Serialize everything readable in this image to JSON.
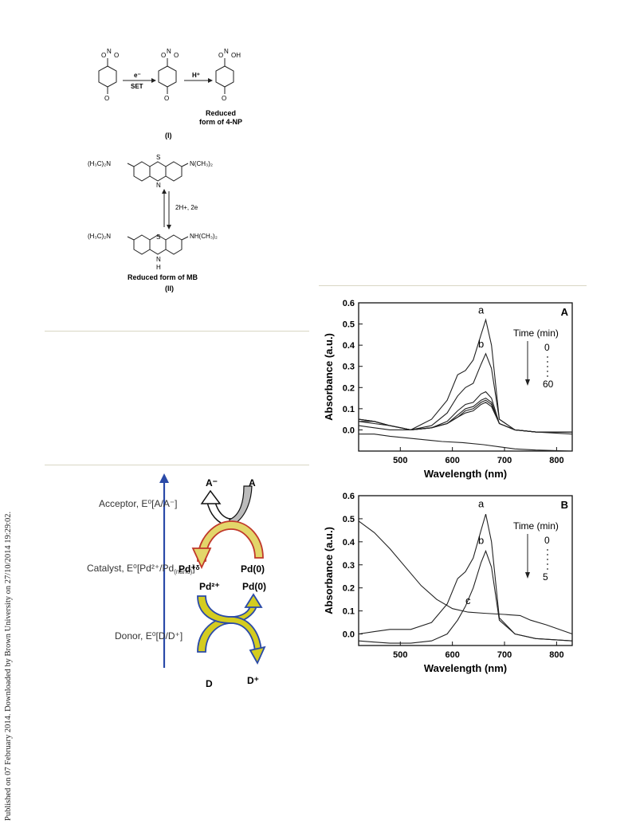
{
  "side_note": "Published on 07 February 2014. Downloaded by Brown University on 27/10/2014 19:29:02.",
  "scheme": {
    "step1_top": "e⁻",
    "step1_bottom": "SET",
    "step2_top": "H⁺",
    "product_label_1": "Reduced",
    "product_label_2": "form of 4-NP",
    "label_I": "(I)",
    "mb_left_group": "(H₃C)₂N",
    "mb_right_group": "N(CH₃)₂",
    "mb_right_group_reduced": "NH(CH₃)₂",
    "equilibrium_label": "2H+, 2e",
    "reduced_mb_label": "Reduced form of MB",
    "label_II": "(II)"
  },
  "energy_diagram": {
    "acceptor": "Acceptor, E⁰[A/A⁻]",
    "catalyst_prefix": "Catalyst, E⁰[Pd²⁺/Pd",
    "catalyst_sub": "(nano)",
    "catalyst_suffix": "]",
    "donor": "Donor, E⁰[D/D⁺]",
    "A_minus": "A⁻",
    "A": "A",
    "pd_plus": "Pd⁺ᵟ",
    "pd0_top": "Pd(0)",
    "pd2_plus": "Pd²⁺",
    "pd0_bottom": "Pd(0)",
    "D": "D",
    "D_plus": "D⁺"
  },
  "chart_data": [
    {
      "type": "line",
      "panel": "A",
      "xlabel": "Wavelength (nm)",
      "ylabel": "Absorbance (a.u.)",
      "xlim": [
        420,
        830
      ],
      "ylim": [
        -0.1,
        0.6
      ],
      "x_ticks": [
        "500",
        "600",
        "700",
        "800"
      ],
      "y_ticks": [
        "0.0",
        "0.1",
        "0.2",
        "0.3",
        "0.4",
        "0.5",
        "0.6"
      ],
      "annotation_time": "Time (min)",
      "annotation_start": "0",
      "annotation_end": "60",
      "curve_labels": [
        "a",
        "b"
      ],
      "series": [
        {
          "name": "a",
          "x": [
            420,
            450,
            480,
            520,
            560,
            590,
            610,
            625,
            640,
            655,
            664,
            675,
            690,
            720,
            760,
            830
          ],
          "y": [
            0.02,
            0.01,
            0.0,
            0.0,
            0.05,
            0.14,
            0.26,
            0.28,
            0.33,
            0.45,
            0.52,
            0.4,
            0.05,
            0.0,
            -0.01,
            -0.02
          ]
        },
        {
          "name": "b",
          "x": [
            420,
            450,
            480,
            520,
            560,
            590,
            610,
            625,
            640,
            655,
            664,
            675,
            690,
            720,
            760,
            830
          ],
          "y": [
            0.04,
            0.03,
            0.02,
            0.0,
            0.02,
            0.08,
            0.16,
            0.2,
            0.22,
            0.31,
            0.36,
            0.29,
            0.05,
            0.0,
            -0.01,
            -0.01
          ]
        },
        {
          "x": [
            420,
            450,
            480,
            520,
            560,
            590,
            610,
            625,
            640,
            655,
            664,
            675,
            690,
            720,
            760,
            830
          ],
          "y": [
            0.05,
            0.04,
            0.02,
            0.0,
            0.01,
            0.04,
            0.09,
            0.12,
            0.13,
            0.17,
            0.18,
            0.15,
            0.03,
            0.0,
            -0.01,
            -0.01
          ]
        },
        {
          "x": [
            420,
            450,
            480,
            520,
            560,
            590,
            610,
            625,
            640,
            655,
            664,
            675,
            690,
            720,
            760,
            830
          ],
          "y": [
            0.05,
            0.04,
            0.02,
            0.0,
            0.01,
            0.03,
            0.07,
            0.1,
            0.11,
            0.14,
            0.15,
            0.13,
            0.03,
            0.0,
            -0.01,
            -0.01
          ]
        },
        {
          "x": [
            420,
            450,
            480,
            520,
            560,
            590,
            610,
            625,
            640,
            655,
            664,
            675,
            690,
            720,
            760,
            830
          ],
          "y": [
            0.05,
            0.04,
            0.02,
            0.0,
            0.01,
            0.03,
            0.06,
            0.09,
            0.1,
            0.13,
            0.14,
            0.12,
            0.03,
            0.0,
            -0.01,
            -0.01
          ]
        },
        {
          "x": [
            420,
            450,
            480,
            520,
            560,
            590,
            610,
            625,
            640,
            655,
            664,
            675,
            690,
            720,
            760,
            830
          ],
          "y": [
            0.04,
            0.04,
            0.02,
            0.0,
            0.01,
            0.03,
            0.06,
            0.08,
            0.09,
            0.12,
            0.13,
            0.11,
            0.03,
            0.0,
            -0.01,
            -0.01
          ]
        },
        {
          "x": [
            420,
            450,
            480,
            520,
            560,
            580,
            620,
            660,
            690,
            720,
            760,
            830
          ],
          "y": [
            -0.02,
            -0.02,
            -0.03,
            -0.04,
            -0.05,
            -0.055,
            -0.06,
            -0.07,
            -0.08,
            -0.09,
            -0.095,
            -0.1
          ]
        }
      ]
    },
    {
      "type": "line",
      "panel": "B",
      "xlabel": "Wavelength (nm)",
      "ylabel": "Absorbance (a.u.)",
      "xlim": [
        420,
        830
      ],
      "ylim": [
        -0.05,
        0.6
      ],
      "x_ticks": [
        "500",
        "600",
        "700",
        "800"
      ],
      "y_ticks": [
        "0.0",
        "0.1",
        "0.2",
        "0.3",
        "0.4",
        "0.5",
        "0.6"
      ],
      "annotation_time": "Time (min)",
      "annotation_start": "0",
      "annotation_end": "5",
      "curve_labels": [
        "a",
        "b",
        "c"
      ],
      "series": [
        {
          "name": "a",
          "x": [
            420,
            450,
            480,
            520,
            560,
            590,
            610,
            625,
            640,
            655,
            664,
            675,
            690,
            720,
            760,
            830
          ],
          "y": [
            0.0,
            0.01,
            0.02,
            0.02,
            0.05,
            0.13,
            0.24,
            0.27,
            0.33,
            0.45,
            0.52,
            0.4,
            0.07,
            0.0,
            -0.02,
            -0.03
          ]
        },
        {
          "name": "b",
          "x": [
            420,
            450,
            480,
            520,
            560,
            590,
            610,
            625,
            640,
            655,
            664,
            675,
            690,
            720,
            760,
            830
          ],
          "y": [
            -0.03,
            -0.035,
            -0.04,
            -0.04,
            -0.03,
            0.0,
            0.06,
            0.12,
            0.2,
            0.31,
            0.36,
            0.29,
            0.06,
            0.0,
            -0.02,
            -0.03
          ]
        },
        {
          "name": "c",
          "x": [
            420,
            450,
            480,
            510,
            540,
            570,
            600,
            630,
            660,
            700,
            730,
            750,
            780,
            830
          ],
          "y": [
            0.49,
            0.44,
            0.37,
            0.29,
            0.21,
            0.15,
            0.11,
            0.095,
            0.09,
            0.085,
            0.08,
            0.06,
            0.04,
            0.0
          ]
        }
      ]
    }
  ]
}
